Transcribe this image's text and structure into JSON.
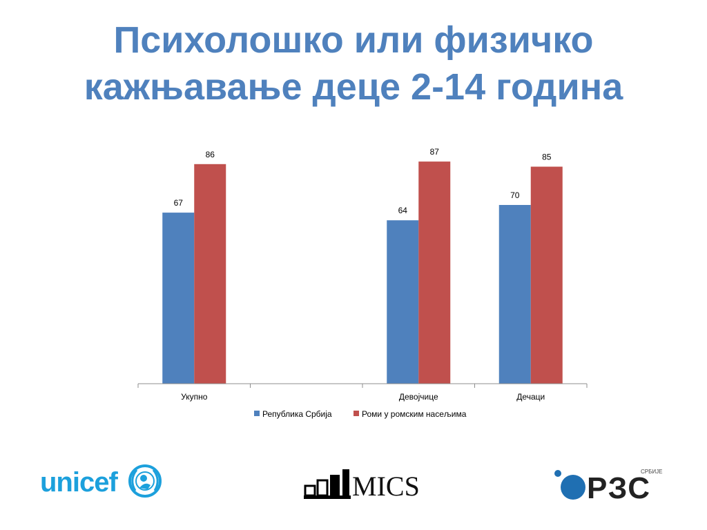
{
  "title_line1": "Психолошко или физичко",
  "title_line2": "кажњавање деце 2-14 година",
  "colors": {
    "title": "#4f81bd",
    "series1": "#4f81bd",
    "series2": "#c0504d"
  },
  "chart_data": {
    "type": "bar",
    "categories": [
      "Укупно",
      "",
      "Девојчице",
      "Дечаци"
    ],
    "series": [
      {
        "name": "Република Србија",
        "values": [
          67,
          null,
          64,
          70
        ]
      },
      {
        "name": "Роми у ромским насељима",
        "values": [
          86,
          null,
          87,
          85
        ]
      }
    ],
    "ylim": [
      0,
      100
    ],
    "grid": false,
    "legend": "bottom"
  },
  "logos": {
    "unicef": "unicef",
    "mics": "MICS",
    "rzs": "РЗС",
    "rzs_small": "СРБИЈЕ"
  }
}
